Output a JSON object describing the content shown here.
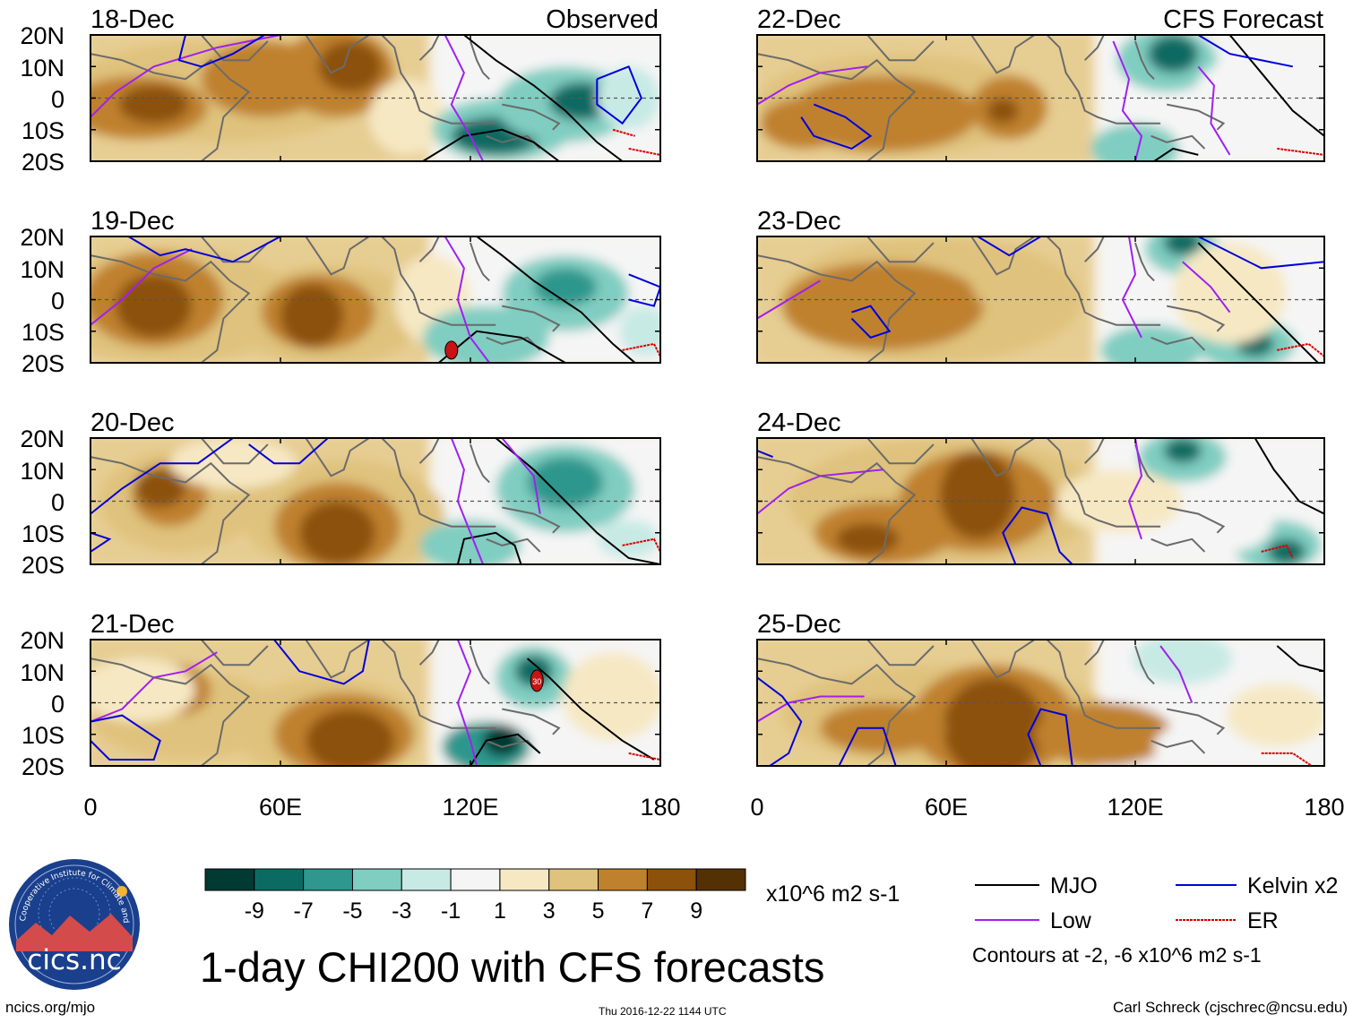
{
  "chart_data": {
    "type": "heatmap",
    "title": "1-day CHI200 with CFS forecasts",
    "variable": "CHI200",
    "units": "x10^6 m2 s-1",
    "x_ticks": [
      "0",
      "60E",
      "120E",
      "180"
    ],
    "x_range": [
      0,
      180
    ],
    "y_ticks": [
      "20N",
      "10N",
      "0",
      "10S",
      "20S"
    ],
    "y_range": [
      -20,
      20
    ],
    "colorbar": {
      "labels": [
        "-9",
        "-7",
        "-5",
        "-3",
        "-1",
        "1",
        "3",
        "5",
        "7",
        "9"
      ],
      "bounds": [
        -11,
        -9,
        -7,
        -5,
        -3,
        -1,
        1,
        3,
        5,
        7,
        9,
        11
      ],
      "colors": [
        "#013a33",
        "#0b6b62",
        "#2f978d",
        "#80cdc1",
        "#c7eae5",
        "#f5f5f5",
        "#f6e8c3",
        "#dfc27d",
        "#bf812d",
        "#8c510a",
        "#543005"
      ]
    },
    "panels_observed": {
      "header": "Observed",
      "dates": [
        "18-Dec",
        "19-Dec",
        "20-Dec",
        "21-Dec"
      ]
    },
    "panels_forecast": {
      "header": "CFS Forecast",
      "dates": [
        "22-Dec",
        "23-Dec",
        "24-Dec",
        "25-Dec"
      ]
    },
    "legend": {
      "items": [
        {
          "label": "MJO",
          "color": "#000000"
        },
        {
          "label": "Kelvin x2",
          "color": "#0000dd"
        },
        {
          "label": "Low",
          "color": "#a020f0"
        },
        {
          "label": "ER",
          "color": "#dd0000"
        }
      ],
      "contour_note": "Contours at -2, -6 x10^6 m2 s-1"
    },
    "storm_labels": [
      "30"
    ]
  },
  "footer": {
    "left": "ncics.org/mjo",
    "center": "Thu 2016-12-22 1144 UTC",
    "right": "Carl Schreck (cjschrec@ncsu.edu)"
  },
  "logo": {
    "text": "cics.nc",
    "ring_text": "Cooperative Institute for Climate and Satellites"
  }
}
